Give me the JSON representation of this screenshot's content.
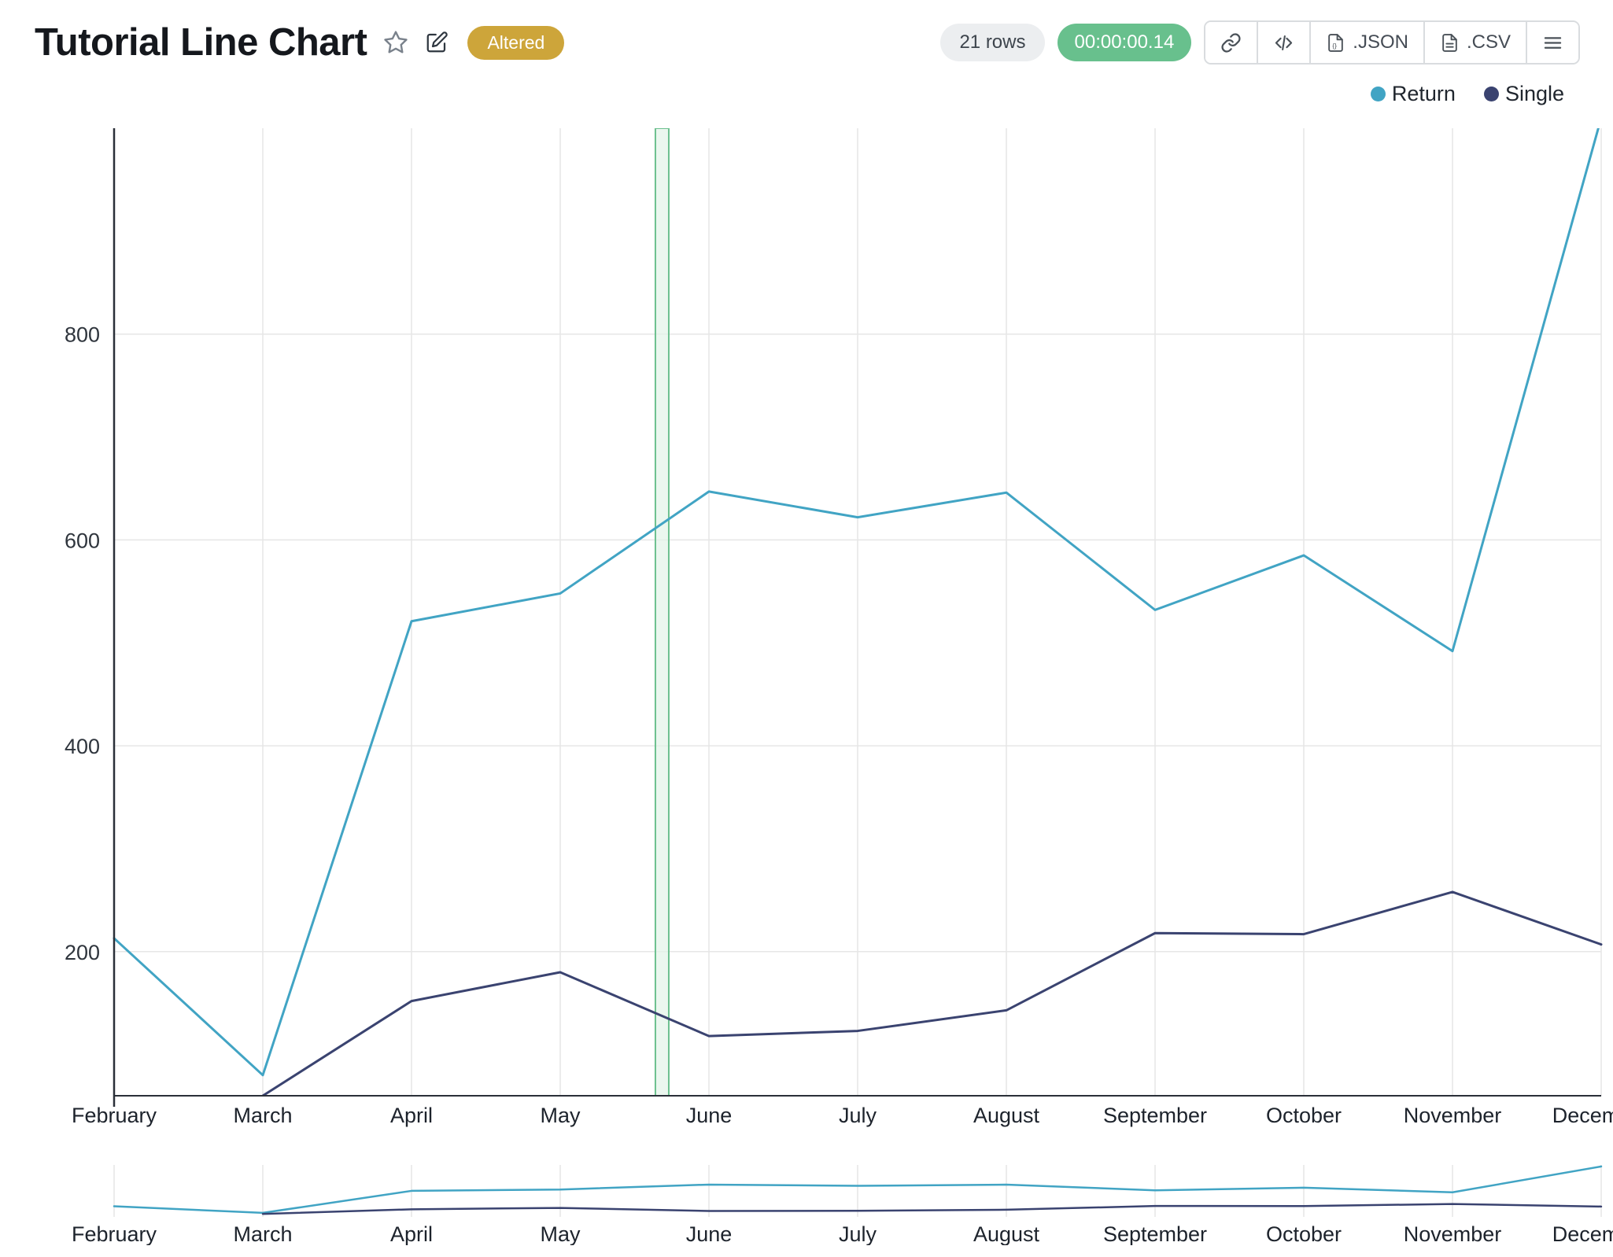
{
  "header": {
    "title": "Tutorial Line Chart",
    "altered_badge": "Altered",
    "rows_badge": "21 rows",
    "time_badge": "00:00:00.14",
    "json_button": ".JSON",
    "csv_button": ".CSV"
  },
  "colors": {
    "accent_gold": "#cda53a",
    "accent_green": "#68c08d",
    "gridline": "#e6e6e6",
    "axis": "#2a2f38",
    "band_fill": "#e2f3e8",
    "band_stroke": "#6cc08f"
  },
  "chart_data": {
    "type": "line",
    "categories": [
      "February",
      "March",
      "April",
      "May",
      "June",
      "July",
      "August",
      "September",
      "October",
      "November",
      "December"
    ],
    "series": [
      {
        "name": "Return",
        "color": "#41a4c4",
        "values": [
          213,
          80,
          521,
          548,
          647,
          622,
          646,
          532,
          585,
          492,
          1010
        ]
      },
      {
        "name": "Single",
        "color": "#3a4370",
        "values": [
          null,
          60,
          152,
          180,
          118,
          123,
          143,
          218,
          217,
          258,
          207
        ]
      }
    ],
    "y_ticks": [
      200,
      400,
      600,
      800
    ],
    "y_min": 60,
    "y_max": 1000,
    "grid": true,
    "legend_position": "top-right",
    "highlight_band": {
      "from_index": 3.64,
      "to_index": 3.73
    },
    "minimap": {
      "y_min": 0,
      "y_max": 1040
    }
  }
}
